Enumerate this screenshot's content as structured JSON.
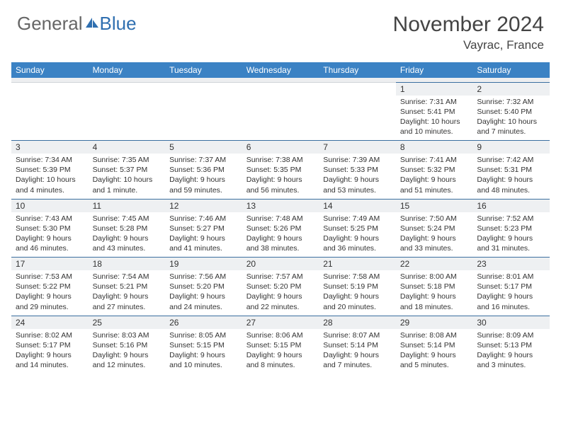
{
  "logo": {
    "general": "General",
    "blue": "Blue"
  },
  "title": "November 2024",
  "location": "Vayrac, France",
  "weekdays": [
    "Sunday",
    "Monday",
    "Tuesday",
    "Wednesday",
    "Thursday",
    "Friday",
    "Saturday"
  ],
  "colors": {
    "header_bg": "#3b82c4",
    "header_text": "#ffffff",
    "daynum_bg": "#eef0f2",
    "daynum_border": "#3b6fa0",
    "body_text": "#333333",
    "logo_gray": "#666666",
    "logo_blue": "#2f6fb0"
  },
  "weeks": [
    [
      null,
      null,
      null,
      null,
      null,
      {
        "n": "1",
        "sr": "Sunrise: 7:31 AM",
        "ss": "Sunset: 5:41 PM",
        "d1": "Daylight: 10 hours",
        "d2": "and 10 minutes."
      },
      {
        "n": "2",
        "sr": "Sunrise: 7:32 AM",
        "ss": "Sunset: 5:40 PM",
        "d1": "Daylight: 10 hours",
        "d2": "and 7 minutes."
      }
    ],
    [
      {
        "n": "3",
        "sr": "Sunrise: 7:34 AM",
        "ss": "Sunset: 5:39 PM",
        "d1": "Daylight: 10 hours",
        "d2": "and 4 minutes."
      },
      {
        "n": "4",
        "sr": "Sunrise: 7:35 AM",
        "ss": "Sunset: 5:37 PM",
        "d1": "Daylight: 10 hours",
        "d2": "and 1 minute."
      },
      {
        "n": "5",
        "sr": "Sunrise: 7:37 AM",
        "ss": "Sunset: 5:36 PM",
        "d1": "Daylight: 9 hours",
        "d2": "and 59 minutes."
      },
      {
        "n": "6",
        "sr": "Sunrise: 7:38 AM",
        "ss": "Sunset: 5:35 PM",
        "d1": "Daylight: 9 hours",
        "d2": "and 56 minutes."
      },
      {
        "n": "7",
        "sr": "Sunrise: 7:39 AM",
        "ss": "Sunset: 5:33 PM",
        "d1": "Daylight: 9 hours",
        "d2": "and 53 minutes."
      },
      {
        "n": "8",
        "sr": "Sunrise: 7:41 AM",
        "ss": "Sunset: 5:32 PM",
        "d1": "Daylight: 9 hours",
        "d2": "and 51 minutes."
      },
      {
        "n": "9",
        "sr": "Sunrise: 7:42 AM",
        "ss": "Sunset: 5:31 PM",
        "d1": "Daylight: 9 hours",
        "d2": "and 48 minutes."
      }
    ],
    [
      {
        "n": "10",
        "sr": "Sunrise: 7:43 AM",
        "ss": "Sunset: 5:30 PM",
        "d1": "Daylight: 9 hours",
        "d2": "and 46 minutes."
      },
      {
        "n": "11",
        "sr": "Sunrise: 7:45 AM",
        "ss": "Sunset: 5:28 PM",
        "d1": "Daylight: 9 hours",
        "d2": "and 43 minutes."
      },
      {
        "n": "12",
        "sr": "Sunrise: 7:46 AM",
        "ss": "Sunset: 5:27 PM",
        "d1": "Daylight: 9 hours",
        "d2": "and 41 minutes."
      },
      {
        "n": "13",
        "sr": "Sunrise: 7:48 AM",
        "ss": "Sunset: 5:26 PM",
        "d1": "Daylight: 9 hours",
        "d2": "and 38 minutes."
      },
      {
        "n": "14",
        "sr": "Sunrise: 7:49 AM",
        "ss": "Sunset: 5:25 PM",
        "d1": "Daylight: 9 hours",
        "d2": "and 36 minutes."
      },
      {
        "n": "15",
        "sr": "Sunrise: 7:50 AM",
        "ss": "Sunset: 5:24 PM",
        "d1": "Daylight: 9 hours",
        "d2": "and 33 minutes."
      },
      {
        "n": "16",
        "sr": "Sunrise: 7:52 AM",
        "ss": "Sunset: 5:23 PM",
        "d1": "Daylight: 9 hours",
        "d2": "and 31 minutes."
      }
    ],
    [
      {
        "n": "17",
        "sr": "Sunrise: 7:53 AM",
        "ss": "Sunset: 5:22 PM",
        "d1": "Daylight: 9 hours",
        "d2": "and 29 minutes."
      },
      {
        "n": "18",
        "sr": "Sunrise: 7:54 AM",
        "ss": "Sunset: 5:21 PM",
        "d1": "Daylight: 9 hours",
        "d2": "and 27 minutes."
      },
      {
        "n": "19",
        "sr": "Sunrise: 7:56 AM",
        "ss": "Sunset: 5:20 PM",
        "d1": "Daylight: 9 hours",
        "d2": "and 24 minutes."
      },
      {
        "n": "20",
        "sr": "Sunrise: 7:57 AM",
        "ss": "Sunset: 5:20 PM",
        "d1": "Daylight: 9 hours",
        "d2": "and 22 minutes."
      },
      {
        "n": "21",
        "sr": "Sunrise: 7:58 AM",
        "ss": "Sunset: 5:19 PM",
        "d1": "Daylight: 9 hours",
        "d2": "and 20 minutes."
      },
      {
        "n": "22",
        "sr": "Sunrise: 8:00 AM",
        "ss": "Sunset: 5:18 PM",
        "d1": "Daylight: 9 hours",
        "d2": "and 18 minutes."
      },
      {
        "n": "23",
        "sr": "Sunrise: 8:01 AM",
        "ss": "Sunset: 5:17 PM",
        "d1": "Daylight: 9 hours",
        "d2": "and 16 minutes."
      }
    ],
    [
      {
        "n": "24",
        "sr": "Sunrise: 8:02 AM",
        "ss": "Sunset: 5:17 PM",
        "d1": "Daylight: 9 hours",
        "d2": "and 14 minutes."
      },
      {
        "n": "25",
        "sr": "Sunrise: 8:03 AM",
        "ss": "Sunset: 5:16 PM",
        "d1": "Daylight: 9 hours",
        "d2": "and 12 minutes."
      },
      {
        "n": "26",
        "sr": "Sunrise: 8:05 AM",
        "ss": "Sunset: 5:15 PM",
        "d1": "Daylight: 9 hours",
        "d2": "and 10 minutes."
      },
      {
        "n": "27",
        "sr": "Sunrise: 8:06 AM",
        "ss": "Sunset: 5:15 PM",
        "d1": "Daylight: 9 hours",
        "d2": "and 8 minutes."
      },
      {
        "n": "28",
        "sr": "Sunrise: 8:07 AM",
        "ss": "Sunset: 5:14 PM",
        "d1": "Daylight: 9 hours",
        "d2": "and 7 minutes."
      },
      {
        "n": "29",
        "sr": "Sunrise: 8:08 AM",
        "ss": "Sunset: 5:14 PM",
        "d1": "Daylight: 9 hours",
        "d2": "and 5 minutes."
      },
      {
        "n": "30",
        "sr": "Sunrise: 8:09 AM",
        "ss": "Sunset: 5:13 PM",
        "d1": "Daylight: 9 hours",
        "d2": "and 3 minutes."
      }
    ]
  ]
}
